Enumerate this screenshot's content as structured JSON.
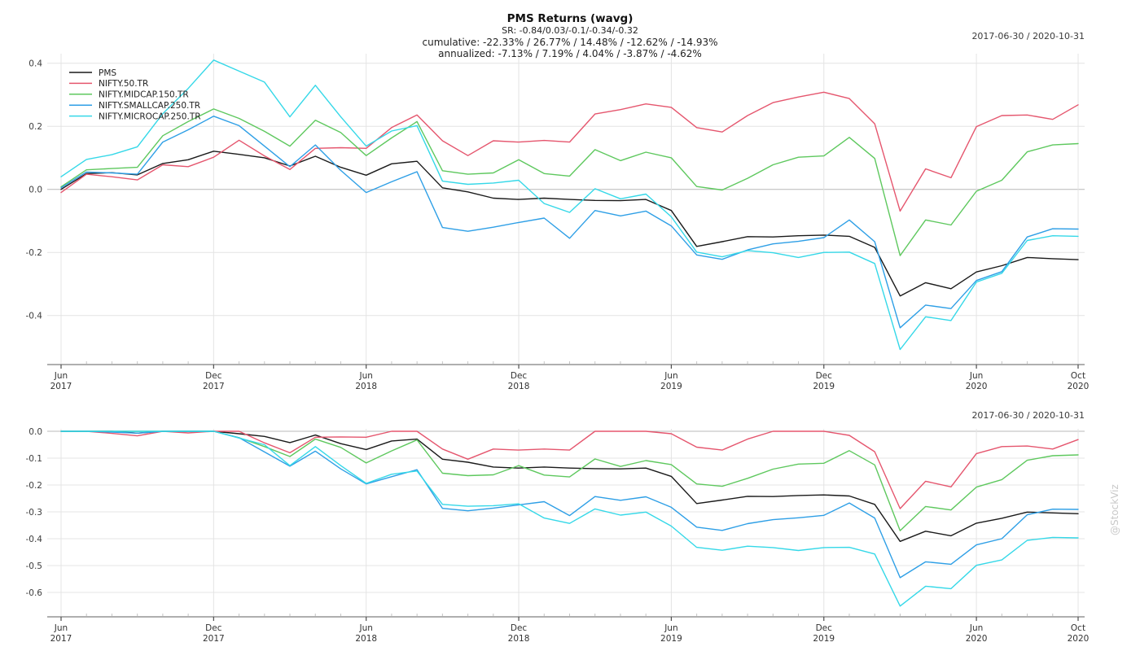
{
  "header": {
    "title": "PMS Returns (wavg)",
    "sr_line": "SR: -0.84/0.03/-0.1/-0.34/-0.32",
    "cumulative_line": "cumulative: -22.33% / 26.77% / 14.48% / -12.62% / -14.93%",
    "annualized_line": "annualized: -7.13% / 7.19% / 4.04% / -3.87% / -4.62%"
  },
  "panels": {
    "top": {
      "date_range": "2017-06-30 / 2020-10-31"
    },
    "bottom": {
      "date_range": "2017-06-30 / 2020-10-31"
    }
  },
  "watermark": "@StockViz",
  "colors": {
    "pms": "#1a1a1a",
    "nifty50": "#e5566e",
    "midcap": "#5ec85e",
    "smallcap": "#2e9fe6",
    "microcap": "#35d8e8",
    "grid": "#e4e4e4",
    "zero_line": "#b8b8b8",
    "axis": "#7f7f7f"
  },
  "chart_data": [
    {
      "type": "line",
      "name": "cumulative-returns",
      "x": [
        "2017-06",
        "2017-07",
        "2017-08",
        "2017-09",
        "2017-10",
        "2017-11",
        "2017-12",
        "2018-01",
        "2018-02",
        "2018-03",
        "2018-04",
        "2018-05",
        "2018-06",
        "2018-07",
        "2018-08",
        "2018-09",
        "2018-10",
        "2018-11",
        "2018-12",
        "2019-01",
        "2019-02",
        "2019-03",
        "2019-04",
        "2019-05",
        "2019-06",
        "2019-07",
        "2019-08",
        "2019-09",
        "2019-10",
        "2019-11",
        "2019-12",
        "2020-01",
        "2020-02",
        "2020-03",
        "2020-04",
        "2020-05",
        "2020-06",
        "2020-07",
        "2020-08",
        "2020-09",
        "2020-10"
      ],
      "ylim": [
        -0.55,
        0.44
      ],
      "y_ticks": [
        0.4,
        0.2,
        0.0,
        -0.2,
        -0.4
      ],
      "x_ticks": [
        {
          "i": 0,
          "l1": "Jun",
          "l2": "2017"
        },
        {
          "i": 6,
          "l1": "Dec",
          "l2": "2017"
        },
        {
          "i": 12,
          "l1": "Jun",
          "l2": "2018"
        },
        {
          "i": 18,
          "l1": "Dec",
          "l2": "2018"
        },
        {
          "i": 24,
          "l1": "Jun",
          "l2": "2019"
        },
        {
          "i": 30,
          "l1": "Dec",
          "l2": "2019"
        },
        {
          "i": 36,
          "l1": "Jun",
          "l2": "2020"
        },
        {
          "i": 40,
          "l1": "Oct",
          "l2": "2020"
        }
      ],
      "legend_position": "top-left",
      "grid": true,
      "series": [
        {
          "name": "PMS",
          "slug": "pms",
          "color": "#1a1a1a",
          "values": [
            0.0,
            0.05,
            0.053,
            0.046,
            0.082,
            0.094,
            0.121,
            0.111,
            0.1,
            0.074,
            0.105,
            0.07,
            0.045,
            0.081,
            0.089,
            0.005,
            -0.008,
            -0.028,
            -0.032,
            -0.028,
            -0.032,
            -0.035,
            -0.036,
            -0.032,
            -0.067,
            -0.181,
            -0.166,
            -0.15,
            -0.151,
            -0.147,
            -0.145,
            -0.149,
            -0.184,
            -0.338,
            -0.296,
            -0.315,
            -0.262,
            -0.242,
            -0.216,
            -0.22,
            -0.223
          ]
        },
        {
          "name": "NIFTY.50.TR",
          "slug": "nifty-50-tr",
          "color": "#e5566e",
          "values": [
            -0.01,
            0.048,
            0.04,
            0.03,
            0.078,
            0.072,
            0.102,
            0.156,
            0.106,
            0.063,
            0.13,
            0.132,
            0.13,
            0.196,
            0.236,
            0.154,
            0.107,
            0.154,
            0.15,
            0.155,
            0.15,
            0.239,
            0.253,
            0.271,
            0.26,
            0.196,
            0.182,
            0.234,
            0.275,
            0.293,
            0.308,
            0.288,
            0.208,
            -0.069,
            0.065,
            0.037,
            0.199,
            0.234,
            0.236,
            0.222,
            0.268
          ]
        },
        {
          "name": "NIFTY.MIDCAP.150.TR",
          "slug": "nifty-midcap-150-tr",
          "color": "#5ec85e",
          "values": [
            0.008,
            0.062,
            0.066,
            0.07,
            0.17,
            0.215,
            0.255,
            0.225,
            0.184,
            0.137,
            0.219,
            0.18,
            0.107,
            0.163,
            0.215,
            0.059,
            0.048,
            0.052,
            0.094,
            0.05,
            0.042,
            0.126,
            0.091,
            0.118,
            0.1,
            0.009,
            -0.002,
            0.035,
            0.078,
            0.102,
            0.106,
            0.165,
            0.098,
            -0.21,
            -0.097,
            -0.113,
            -0.006,
            0.029,
            0.119,
            0.141,
            0.145
          ]
        },
        {
          "name": "NIFTY.SMALLCAP.250.TR",
          "slug": "nifty-smallcap-250-tr",
          "color": "#2e9fe6",
          "values": [
            0.005,
            0.055,
            0.052,
            0.048,
            0.15,
            0.189,
            0.232,
            0.202,
            0.137,
            0.072,
            0.141,
            0.06,
            -0.01,
            0.024,
            0.056,
            -0.121,
            -0.133,
            -0.12,
            -0.105,
            -0.091,
            -0.155,
            -0.067,
            -0.084,
            -0.069,
            -0.116,
            -0.208,
            -0.222,
            -0.192,
            -0.173,
            -0.165,
            -0.153,
            -0.097,
            -0.166,
            -0.439,
            -0.367,
            -0.378,
            -0.289,
            -0.261,
            -0.151,
            -0.125,
            -0.126
          ]
        },
        {
          "name": "NIFTY.MICROCAP.250.TR",
          "slug": "nifty-microcap-250-tr",
          "color": "#35d8e8",
          "values": [
            0.04,
            0.095,
            0.11,
            0.135,
            0.24,
            0.32,
            0.41,
            0.375,
            0.34,
            0.23,
            0.33,
            0.23,
            0.137,
            0.185,
            0.202,
            0.026,
            0.016,
            0.02,
            0.029,
            -0.045,
            -0.073,
            0.002,
            -0.03,
            -0.015,
            -0.087,
            -0.199,
            -0.214,
            -0.194,
            -0.201,
            -0.216,
            -0.2,
            -0.199,
            -0.235,
            -0.508,
            -0.404,
            -0.416,
            -0.294,
            -0.266,
            -0.162,
            -0.147,
            -0.149
          ]
        }
      ]
    },
    {
      "type": "line",
      "name": "drawdown",
      "x": [
        "2017-06",
        "2017-07",
        "2017-08",
        "2017-09",
        "2017-10",
        "2017-11",
        "2017-12",
        "2018-01",
        "2018-02",
        "2018-03",
        "2018-04",
        "2018-05",
        "2018-06",
        "2018-07",
        "2018-08",
        "2018-09",
        "2018-10",
        "2018-11",
        "2018-12",
        "2019-01",
        "2019-02",
        "2019-03",
        "2019-04",
        "2019-05",
        "2019-06",
        "2019-07",
        "2019-08",
        "2019-09",
        "2019-10",
        "2019-11",
        "2019-12",
        "2020-01",
        "2020-02",
        "2020-03",
        "2020-04",
        "2020-05",
        "2020-06",
        "2020-07",
        "2020-08",
        "2020-09",
        "2020-10"
      ],
      "ylim": [
        -0.69,
        0.005
      ],
      "y_ticks": [
        0.0,
        -0.1,
        -0.2,
        -0.3,
        -0.4,
        -0.5,
        -0.6
      ],
      "x_ticks": [
        {
          "i": 0,
          "l1": "Jun",
          "l2": "2017"
        },
        {
          "i": 6,
          "l1": "Dec",
          "l2": "2017"
        },
        {
          "i": 12,
          "l1": "Jun",
          "l2": "2018"
        },
        {
          "i": 18,
          "l1": "Dec",
          "l2": "2018"
        },
        {
          "i": 24,
          "l1": "Jun",
          "l2": "2019"
        },
        {
          "i": 30,
          "l1": "Dec",
          "l2": "2019"
        },
        {
          "i": 36,
          "l1": "Jun",
          "l2": "2020"
        },
        {
          "i": 40,
          "l1": "Oct",
          "l2": "2020"
        }
      ],
      "legend_position": "none",
      "grid": true,
      "series": [
        {
          "name": "PMS",
          "slug": "pms",
          "color": "#1a1a1a",
          "values": [
            0,
            0,
            0,
            -0.007,
            0,
            0,
            0,
            -0.009,
            -0.019,
            -0.042,
            -0.014,
            -0.046,
            -0.068,
            -0.036,
            -0.029,
            -0.104,
            -0.115,
            -0.133,
            -0.137,
            -0.133,
            -0.137,
            -0.139,
            -0.14,
            -0.137,
            -0.168,
            -0.269,
            -0.256,
            -0.242,
            -0.243,
            -0.239,
            -0.237,
            -0.241,
            -0.272,
            -0.41,
            -0.372,
            -0.389,
            -0.342,
            -0.324,
            -0.301,
            -0.304,
            -0.307
          ]
        },
        {
          "name": "NIFTY.50.TR",
          "slug": "nifty-50-tr",
          "color": "#e5566e",
          "values": [
            0,
            0,
            -0.008,
            -0.017,
            0,
            -0.006,
            0,
            0,
            -0.043,
            -0.08,
            -0.022,
            -0.021,
            -0.022,
            0,
            0,
            -0.066,
            -0.104,
            -0.066,
            -0.07,
            -0.066,
            -0.07,
            0,
            0,
            0,
            -0.009,
            -0.059,
            -0.07,
            -0.029,
            0,
            0,
            0,
            -0.015,
            -0.076,
            -0.288,
            -0.186,
            -0.207,
            -0.083,
            -0.057,
            -0.055,
            -0.066,
            -0.031
          ]
        },
        {
          "name": "NIFTY.MIDCAP.150.TR",
          "slug": "nifty-midcap-150-tr",
          "color": "#5ec85e",
          "values": [
            0,
            0,
            0,
            0,
            0,
            0,
            0,
            -0.024,
            -0.057,
            -0.094,
            -0.029,
            -0.06,
            -0.118,
            -0.073,
            -0.032,
            -0.156,
            -0.165,
            -0.162,
            -0.128,
            -0.163,
            -0.17,
            -0.103,
            -0.131,
            -0.109,
            -0.124,
            -0.196,
            -0.205,
            -0.175,
            -0.141,
            -0.122,
            -0.119,
            -0.072,
            -0.125,
            -0.37,
            -0.28,
            -0.293,
            -0.208,
            -0.18,
            -0.108,
            -0.091,
            -0.088
          ]
        },
        {
          "name": "NIFTY.SMALLCAP.250.TR",
          "slug": "nifty-smallcap-250-tr",
          "color": "#2e9fe6",
          "values": [
            0,
            0,
            -0.003,
            -0.007,
            0,
            0,
            0,
            -0.024,
            -0.077,
            -0.13,
            -0.074,
            -0.14,
            -0.196,
            -0.169,
            -0.143,
            -0.287,
            -0.296,
            -0.286,
            -0.274,
            -0.262,
            -0.314,
            -0.243,
            -0.257,
            -0.244,
            -0.283,
            -0.357,
            -0.369,
            -0.344,
            -0.329,
            -0.322,
            -0.313,
            -0.267,
            -0.323,
            -0.545,
            -0.486,
            -0.495,
            -0.423,
            -0.4,
            -0.311,
            -0.29,
            -0.291
          ]
        },
        {
          "name": "NIFTY.MICROCAP.250.TR",
          "slug": "nifty-microcap-250-tr",
          "color": "#35d8e8",
          "values": [
            0,
            0,
            0,
            0,
            0,
            0,
            0,
            -0.025,
            -0.05,
            -0.128,
            -0.057,
            -0.128,
            -0.194,
            -0.16,
            -0.148,
            -0.272,
            -0.279,
            -0.277,
            -0.27,
            -0.323,
            -0.343,
            -0.289,
            -0.312,
            -0.301,
            -0.353,
            -0.432,
            -0.443,
            -0.428,
            -0.433,
            -0.444,
            -0.433,
            -0.432,
            -0.457,
            -0.651,
            -0.577,
            -0.586,
            -0.499,
            -0.479,
            -0.406,
            -0.395,
            -0.397
          ]
        }
      ]
    }
  ]
}
